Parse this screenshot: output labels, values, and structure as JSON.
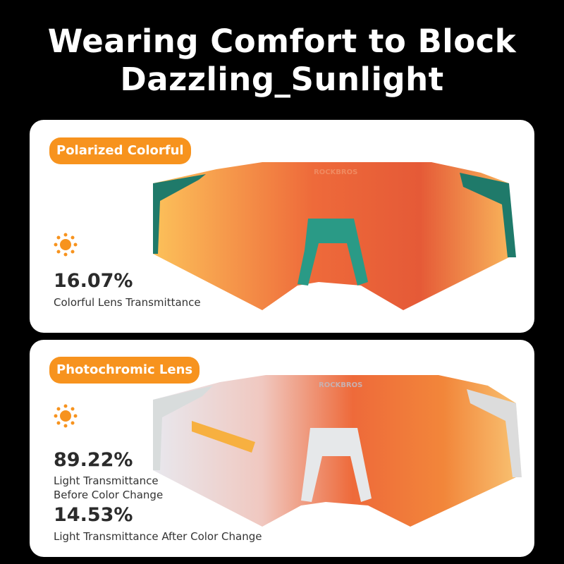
{
  "headline": {
    "line1": "Wearing Comfort to Block",
    "line2": "Dazzling_Sunlight"
  },
  "brand_logo": "ROCKBROS",
  "colors": {
    "accent": "#f7931e",
    "background": "#000000",
    "card": "#ffffff",
    "frame_green": "#1f7a6a"
  },
  "cards": [
    {
      "badge": "Polarized Colorful",
      "icon": "sun-icon",
      "value": "16.07%",
      "label": "Colorful Lens Transmittance"
    },
    {
      "badge": "Photochromic Lens",
      "icon": "sun-icon",
      "value1": "89.22%",
      "label1a": "Light Transmittance",
      "label1b": "Before Color Change",
      "value2": "14.53%",
      "label2": "Light Transmittance After Color Change"
    }
  ]
}
